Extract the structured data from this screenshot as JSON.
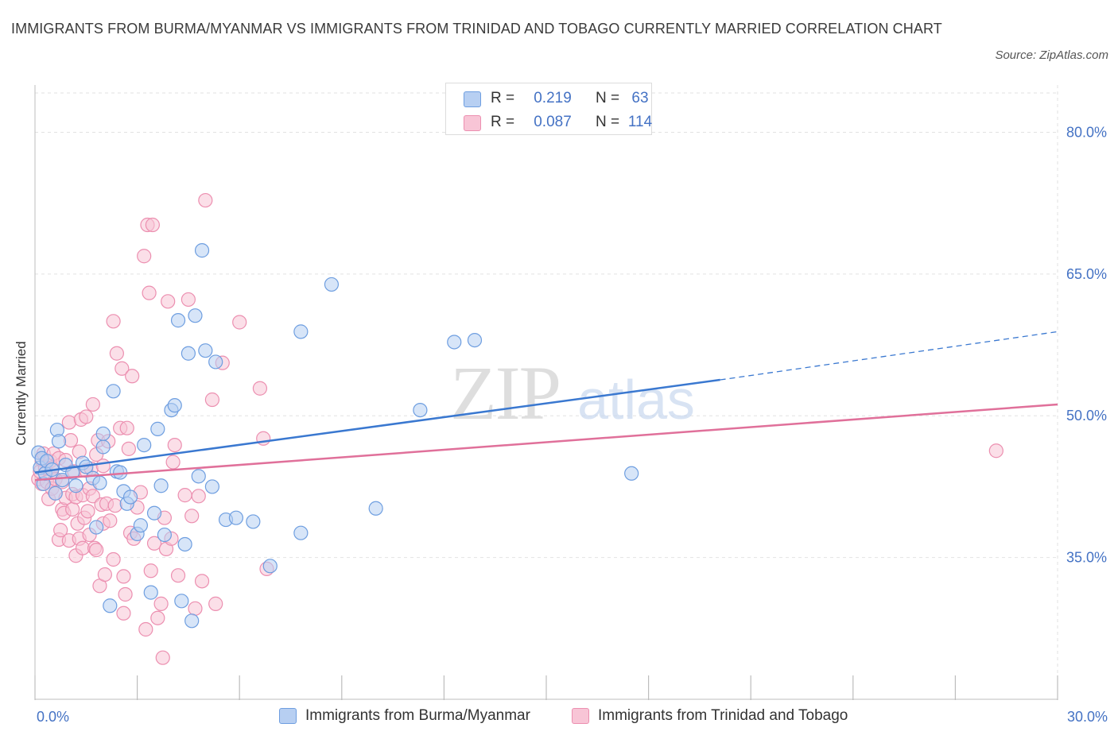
{
  "title": "IMMIGRANTS FROM BURMA/MYANMAR VS IMMIGRANTS FROM TRINIDAD AND TOBAGO CURRENTLY MARRIED CORRELATION CHART",
  "source": "Source: ZipAtlas.com",
  "watermark": {
    "zip": "ZIP",
    "atlas": "atlas"
  },
  "legend_top": {
    "rows": [
      {
        "r_label": "R =",
        "r_value": "0.219",
        "n_label": "N =",
        "n_value": "63"
      },
      {
        "r_label": "R =",
        "r_value": "0.087",
        "n_label": "N =",
        "n_value": "114"
      }
    ]
  },
  "legend_bottom": {
    "items": [
      {
        "label": "Immigrants from Burma/Myanmar"
      },
      {
        "label": "Immigrants from Trinidad and Tobago"
      }
    ]
  },
  "colors": {
    "blue_fill": "#b7cff2",
    "blue_stroke": "#6e9ee0",
    "blue_line": "#3a78d0",
    "pink_fill": "#f8c5d6",
    "pink_stroke": "#ec8fb0",
    "pink_line": "#e0709a",
    "axis_label": "#4472c4",
    "grid": "#e2e2e2"
  },
  "chart_data": {
    "type": "scatter",
    "title": "IMMIGRANTS FROM BURMA/MYANMAR VS IMMIGRANTS FROM TRINIDAD AND TOBAGO CURRENTLY MARRIED CORRELATION CHART",
    "xlabel": "",
    "ylabel": "Currently Married",
    "xlim": [
      0,
      30
    ],
    "ylim": [
      20,
      85
    ],
    "x_tick_labels": [
      {
        "value": 0,
        "label": "0.0%"
      },
      {
        "value": 30,
        "label": "30.0%"
      }
    ],
    "y_tick_labels": [
      {
        "value": 35,
        "label": "35.0%"
      },
      {
        "value": 50,
        "label": "50.0%"
      },
      {
        "value": 65,
        "label": "65.0%"
      },
      {
        "value": 80,
        "label": "80.0%"
      }
    ],
    "grid": true,
    "legend_position": "bottom",
    "series": [
      {
        "name": "Immigrants from Burma/Myanmar",
        "color": "#6e9ee0",
        "trend": {
          "x": [
            0,
            20.1
          ],
          "y": [
            44.0,
            53.8
          ],
          "dashed_to": [
            30,
            58.9
          ]
        },
        "points": [
          [
            0.1,
            46.1
          ],
          [
            0.15,
            44.5
          ],
          [
            0.2,
            45.5
          ],
          [
            0.25,
            42.8
          ],
          [
            0.3,
            43.9
          ],
          [
            0.35,
            45.2
          ],
          [
            0.5,
            44.3
          ],
          [
            0.6,
            41.8
          ],
          [
            0.65,
            48.5
          ],
          [
            0.7,
            47.3
          ],
          [
            0.8,
            43.2
          ],
          [
            0.9,
            44.8
          ],
          [
            1.1,
            44.0
          ],
          [
            1.2,
            42.6
          ],
          [
            1.4,
            45.0
          ],
          [
            1.5,
            44.6
          ],
          [
            1.7,
            43.4
          ],
          [
            1.8,
            38.2
          ],
          [
            1.9,
            42.9
          ],
          [
            2.0,
            46.7
          ],
          [
            2.0,
            48.1
          ],
          [
            2.2,
            29.9
          ],
          [
            2.3,
            52.6
          ],
          [
            2.4,
            44.1
          ],
          [
            2.5,
            44.0
          ],
          [
            2.6,
            42.0
          ],
          [
            2.7,
            40.7
          ],
          [
            2.8,
            41.4
          ],
          [
            3.0,
            37.5
          ],
          [
            3.1,
            38.4
          ],
          [
            3.2,
            46.9
          ],
          [
            3.4,
            31.3
          ],
          [
            3.5,
            39.7
          ],
          [
            3.6,
            48.6
          ],
          [
            3.7,
            42.6
          ],
          [
            3.8,
            37.4
          ],
          [
            4.0,
            50.6
          ],
          [
            4.1,
            51.1
          ],
          [
            4.2,
            60.1
          ],
          [
            4.3,
            30.4
          ],
          [
            4.4,
            36.4
          ],
          [
            4.5,
            56.6
          ],
          [
            4.6,
            28.3
          ],
          [
            4.7,
            60.6
          ],
          [
            4.8,
            43.6
          ],
          [
            4.9,
            67.5
          ],
          [
            5.0,
            56.9
          ],
          [
            5.2,
            42.5
          ],
          [
            5.3,
            55.7
          ],
          [
            5.6,
            39.0
          ],
          [
            5.9,
            39.2
          ],
          [
            6.4,
            38.8
          ],
          [
            6.9,
            34.1
          ],
          [
            7.8,
            58.9
          ],
          [
            7.8,
            37.6
          ],
          [
            8.7,
            63.9
          ],
          [
            10.0,
            40.2
          ],
          [
            11.3,
            50.6
          ],
          [
            12.3,
            57.8
          ],
          [
            12.9,
            58.0
          ],
          [
            17.5,
            43.9
          ]
        ]
      },
      {
        "name": "Immigrants from Trinidad and Tobago",
        "color": "#ec8fb0",
        "trend": {
          "x": [
            0,
            30
          ],
          "y": [
            43.2,
            51.2
          ]
        },
        "points": [
          [
            0.1,
            43.3
          ],
          [
            0.15,
            44.1
          ],
          [
            0.2,
            45.3
          ],
          [
            0.2,
            42.8
          ],
          [
            0.25,
            46.0
          ],
          [
            0.3,
            44.5
          ],
          [
            0.35,
            43.0
          ],
          [
            0.4,
            41.2
          ],
          [
            0.45,
            45.2
          ],
          [
            0.5,
            44.5
          ],
          [
            0.5,
            42.3
          ],
          [
            0.55,
            46.0
          ],
          [
            0.6,
            43.3
          ],
          [
            0.6,
            41.8
          ],
          [
            0.7,
            45.5
          ],
          [
            0.7,
            36.9
          ],
          [
            0.75,
            37.9
          ],
          [
            0.8,
            40.1
          ],
          [
            0.8,
            43.0
          ],
          [
            0.85,
            39.7
          ],
          [
            0.9,
            45.3
          ],
          [
            0.9,
            41.3
          ],
          [
            1.0,
            49.3
          ],
          [
            1.0,
            36.8
          ],
          [
            1.05,
            47.4
          ],
          [
            1.1,
            40.1
          ],
          [
            1.1,
            41.7
          ],
          [
            1.15,
            44.1
          ],
          [
            1.2,
            35.2
          ],
          [
            1.2,
            41.4
          ],
          [
            1.25,
            38.6
          ],
          [
            1.3,
            37.0
          ],
          [
            1.3,
            46.2
          ],
          [
            1.35,
            49.6
          ],
          [
            1.4,
            36.0
          ],
          [
            1.4,
            41.6
          ],
          [
            1.45,
            39.2
          ],
          [
            1.5,
            44.2
          ],
          [
            1.5,
            49.9
          ],
          [
            1.55,
            39.9
          ],
          [
            1.6,
            37.4
          ],
          [
            1.6,
            42.3
          ],
          [
            1.65,
            44.4
          ],
          [
            1.7,
            41.5
          ],
          [
            1.7,
            51.2
          ],
          [
            1.75,
            36.0
          ],
          [
            1.8,
            45.9
          ],
          [
            1.8,
            35.8
          ],
          [
            1.85,
            47.4
          ],
          [
            1.9,
            32.0
          ],
          [
            1.95,
            40.6
          ],
          [
            2.0,
            38.6
          ],
          [
            2.0,
            44.7
          ],
          [
            2.05,
            33.2
          ],
          [
            2.1,
            40.7
          ],
          [
            2.15,
            47.3
          ],
          [
            2.2,
            38.9
          ],
          [
            2.3,
            60.0
          ],
          [
            2.3,
            34.8
          ],
          [
            2.35,
            40.5
          ],
          [
            2.4,
            56.6
          ],
          [
            2.5,
            48.7
          ],
          [
            2.55,
            55.0
          ],
          [
            2.6,
            33.0
          ],
          [
            2.6,
            29.1
          ],
          [
            2.65,
            31.1
          ],
          [
            2.7,
            48.7
          ],
          [
            2.75,
            46.5
          ],
          [
            2.8,
            37.6
          ],
          [
            2.85,
            54.2
          ],
          [
            2.9,
            37.0
          ],
          [
            3.0,
            40.3
          ],
          [
            3.1,
            41.9
          ],
          [
            3.2,
            66.9
          ],
          [
            3.25,
            27.4
          ],
          [
            3.3,
            70.2
          ],
          [
            3.35,
            63.0
          ],
          [
            3.4,
            33.6
          ],
          [
            3.45,
            70.2
          ],
          [
            3.5,
            36.5
          ],
          [
            3.6,
            28.6
          ],
          [
            3.7,
            30.1
          ],
          [
            3.75,
            24.4
          ],
          [
            3.8,
            39.2
          ],
          [
            3.85,
            35.9
          ],
          [
            3.9,
            62.1
          ],
          [
            4.0,
            37.0
          ],
          [
            4.05,
            45.1
          ],
          [
            4.1,
            46.9
          ],
          [
            4.2,
            33.1
          ],
          [
            4.4,
            41.6
          ],
          [
            4.5,
            62.3
          ],
          [
            4.6,
            39.4
          ],
          [
            4.7,
            29.6
          ],
          [
            4.8,
            41.5
          ],
          [
            4.9,
            32.5
          ],
          [
            5.0,
            72.8
          ],
          [
            5.2,
            51.7
          ],
          [
            5.3,
            30.1
          ],
          [
            5.5,
            55.6
          ],
          [
            6.0,
            59.9
          ],
          [
            6.6,
            52.9
          ],
          [
            6.7,
            47.6
          ],
          [
            6.8,
            33.8
          ],
          [
            28.2,
            46.3
          ]
        ]
      }
    ]
  }
}
